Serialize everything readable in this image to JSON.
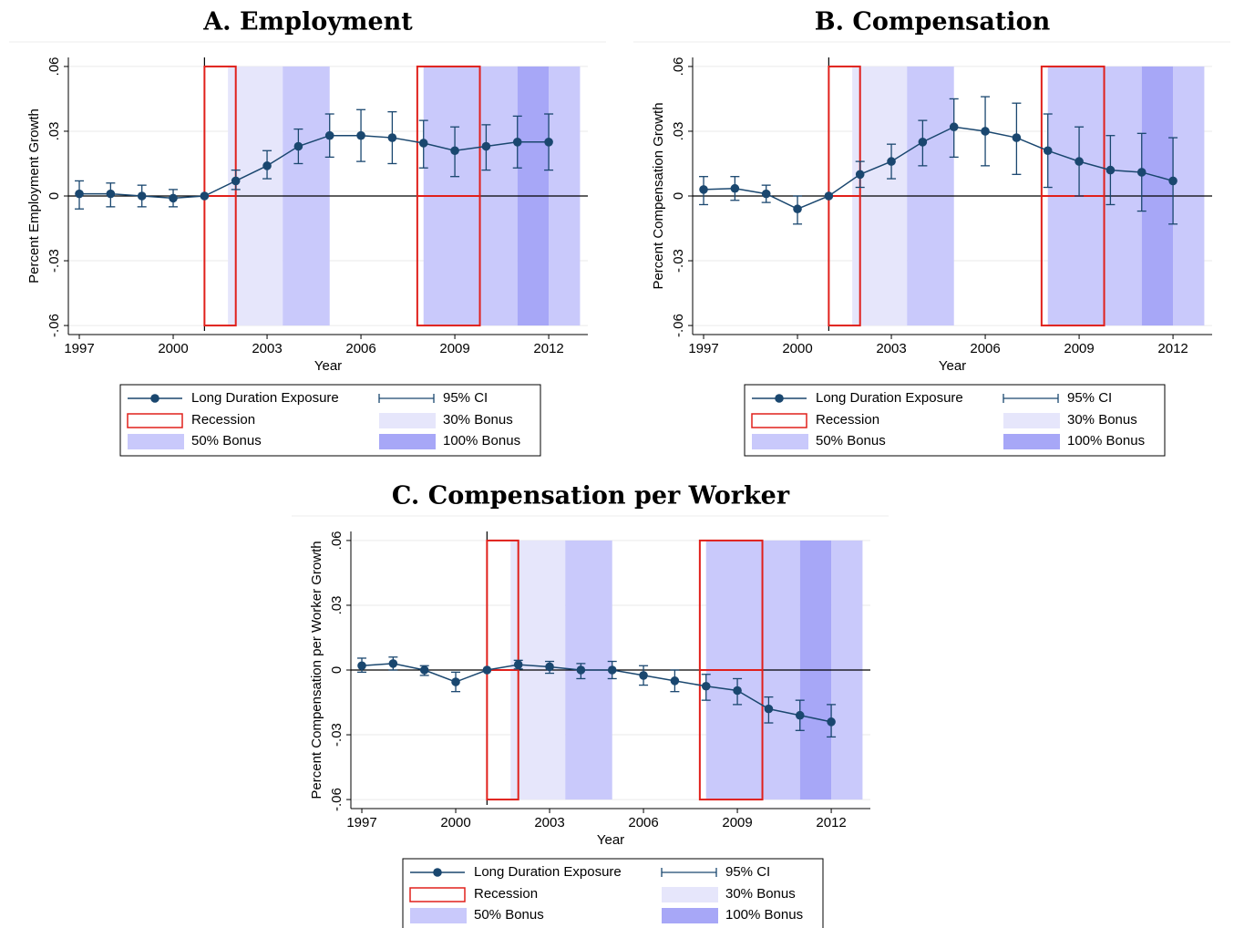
{
  "chart_data": [
    {
      "type": "line",
      "title": "A. Employment",
      "xlabel": "Year",
      "ylabel": "Percent Employment Growth",
      "x": [
        1997,
        1998,
        1999,
        2000,
        2001,
        2002,
        2003,
        2004,
        2005,
        2006,
        2007,
        2008,
        2009,
        2010,
        2011,
        2012
      ],
      "xlim": [
        1996.65,
        2013.25
      ],
      "xticks": [
        1997,
        2000,
        2003,
        2006,
        2009,
        2012
      ],
      "ylim": [
        -0.0625,
        0.0625
      ],
      "yticks": [
        {
          "value": -0.06,
          "label": "-.06"
        },
        {
          "value": -0.03,
          "label": "-.03"
        },
        0,
        {
          "value": 0.03,
          "label": ".03"
        },
        {
          "value": 0.06,
          "label": ".06"
        }
      ],
      "grid": true,
      "legend": "bottom",
      "xline": 2001,
      "ci_name": "95% CI",
      "region_ylim": [
        -0.06,
        0.06
      ],
      "series": [
        {
          "name": "Long Duration Exposure",
          "color": "#1a476f",
          "values": [
            0.001,
            0.001,
            0.0,
            -0.001,
            0,
            0.007,
            0.014,
            0.023,
            0.028,
            0.028,
            0.027,
            0.0245,
            0.021,
            0.023,
            0.025,
            0.025
          ],
          "ci_low": [
            -0.006,
            -0.005,
            -0.005,
            -0.005,
            null,
            0.003,
            0.008,
            0.015,
            0.018,
            0.016,
            0.015,
            0.013,
            0.009,
            0.012,
            0.013,
            0.012
          ],
          "ci_high": [
            0.007,
            0.006,
            0.005,
            0.003,
            null,
            0.012,
            0.021,
            0.031,
            0.038,
            0.04,
            0.039,
            0.035,
            0.032,
            0.033,
            0.037,
            0.038
          ]
        }
      ],
      "regions": [
        {
          "name": "Recession",
          "color": "#e0201b",
          "spans": [
            [
              2001,
              2002
            ],
            [
              2007.8,
              2009.8
            ]
          ]
        },
        {
          "name": "30% Bonus",
          "color": "#e6e6fb",
          "spans": [
            [
              2001.75,
              2003.5
            ]
          ]
        },
        {
          "name": "50% Bonus",
          "color": "#c9c9fb",
          "spans": [
            [
              2003.5,
              2005
            ],
            [
              2008,
              2011
            ],
            [
              2012,
              2013
            ]
          ]
        },
        {
          "name": "100% Bonus",
          "color": "#a7a7f7",
          "spans": [
            [
              2011,
              2012
            ]
          ]
        }
      ]
    },
    {
      "type": "line",
      "title": "B. Compensation",
      "xlabel": "Year",
      "ylabel": "Percent Compensation Growth",
      "x": [
        1997,
        1998,
        1999,
        2000,
        2001,
        2002,
        2003,
        2004,
        2005,
        2006,
        2007,
        2008,
        2009,
        2010,
        2011,
        2012
      ],
      "xlim": [
        1996.65,
        2013.25
      ],
      "xticks": [
        1997,
        2000,
        2003,
        2006,
        2009,
        2012
      ],
      "ylim": [
        -0.0625,
        0.0625
      ],
      "yticks": [
        {
          "value": -0.06,
          "label": "-.06"
        },
        {
          "value": -0.03,
          "label": "-.03"
        },
        0,
        {
          "value": 0.03,
          "label": ".03"
        },
        {
          "value": 0.06,
          "label": ".06"
        }
      ],
      "grid": true,
      "legend": "bottom",
      "xline": 2001,
      "ci_name": "95% CI",
      "region_ylim": [
        -0.06,
        0.06
      ],
      "series": [
        {
          "name": "Long Duration Exposure",
          "color": "#1a476f",
          "values": [
            0.003,
            0.0035,
            0.001,
            -0.006,
            0,
            0.01,
            0.016,
            0.025,
            0.032,
            0.03,
            0.027,
            0.021,
            0.016,
            0.012,
            0.011,
            0.007
          ],
          "ci_low": [
            -0.004,
            -0.002,
            -0.003,
            -0.013,
            null,
            0.004,
            0.008,
            0.014,
            0.018,
            0.014,
            0.01,
            0.004,
            0.0,
            -0.004,
            -0.007,
            -0.013
          ],
          "ci_high": [
            0.009,
            0.009,
            0.005,
            0.0,
            null,
            0.016,
            0.024,
            0.035,
            0.045,
            0.046,
            0.043,
            0.038,
            0.032,
            0.028,
            0.029,
            0.027
          ]
        }
      ],
      "regions": [
        {
          "name": "Recession",
          "color": "#e0201b",
          "spans": [
            [
              2001,
              2002
            ],
            [
              2007.8,
              2009.8
            ]
          ]
        },
        {
          "name": "30% Bonus",
          "color": "#e6e6fb",
          "spans": [
            [
              2001.75,
              2003.5
            ]
          ]
        },
        {
          "name": "50% Bonus",
          "color": "#c9c9fb",
          "spans": [
            [
              2003.5,
              2005
            ],
            [
              2008,
              2011
            ],
            [
              2012,
              2013
            ]
          ]
        },
        {
          "name": "100% Bonus",
          "color": "#a7a7f7",
          "spans": [
            [
              2011,
              2012
            ]
          ]
        }
      ]
    },
    {
      "type": "line",
      "title": "C. Compensation per Worker",
      "xlabel": "Year",
      "ylabel": "Percent Compensation per Worker Growth",
      "x": [
        1997,
        1998,
        1999,
        2000,
        2001,
        2002,
        2003,
        2004,
        2005,
        2006,
        2007,
        2008,
        2009,
        2010,
        2011,
        2012
      ],
      "xlim": [
        1996.65,
        2013.25
      ],
      "xticks": [
        1997,
        2000,
        2003,
        2006,
        2009,
        2012
      ],
      "ylim": [
        -0.0625,
        0.0625
      ],
      "yticks": [
        {
          "value": -0.06,
          "label": "-.06"
        },
        {
          "value": -0.03,
          "label": "-.03"
        },
        0,
        {
          "value": 0.03,
          "label": ".03"
        },
        {
          "value": 0.06,
          "label": ".06"
        }
      ],
      "grid": true,
      "legend": "bottom",
      "xline": 2001,
      "ci_name": "95% CI",
      "region_ylim": [
        -0.06,
        0.06
      ],
      "series": [
        {
          "name": "Long Duration Exposure",
          "color": "#1a476f",
          "values": [
            0.002,
            0.003,
            0.0,
            -0.0055,
            0,
            0.0025,
            0.0015,
            0.0,
            0.0,
            -0.0025,
            -0.005,
            -0.0075,
            -0.0095,
            -0.018,
            -0.021,
            -0.024
          ],
          "ci_low": [
            -0.001,
            0.0,
            -0.0025,
            -0.01,
            null,
            0.0005,
            -0.0015,
            -0.004,
            -0.004,
            -0.007,
            -0.01,
            -0.014,
            -0.016,
            -0.0245,
            -0.028,
            -0.031
          ],
          "ci_high": [
            0.0055,
            0.006,
            0.002,
            -0.001,
            null,
            0.0045,
            0.004,
            0.003,
            0.004,
            0.002,
            0.0,
            -0.002,
            -0.004,
            -0.0125,
            -0.014,
            -0.016
          ]
        }
      ],
      "regions": [
        {
          "name": "Recession",
          "color": "#e0201b",
          "spans": [
            [
              2001,
              2002
            ],
            [
              2007.8,
              2009.8
            ]
          ]
        },
        {
          "name": "30% Bonus",
          "color": "#e6e6fb",
          "spans": [
            [
              2001.75,
              2003.5
            ]
          ]
        },
        {
          "name": "50% Bonus",
          "color": "#c9c9fb",
          "spans": [
            [
              2003.5,
              2005
            ],
            [
              2008,
              2011
            ],
            [
              2012,
              2013
            ]
          ]
        },
        {
          "name": "100% Bonus",
          "color": "#a7a7f7",
          "spans": [
            [
              2011,
              2012
            ]
          ]
        }
      ]
    }
  ]
}
